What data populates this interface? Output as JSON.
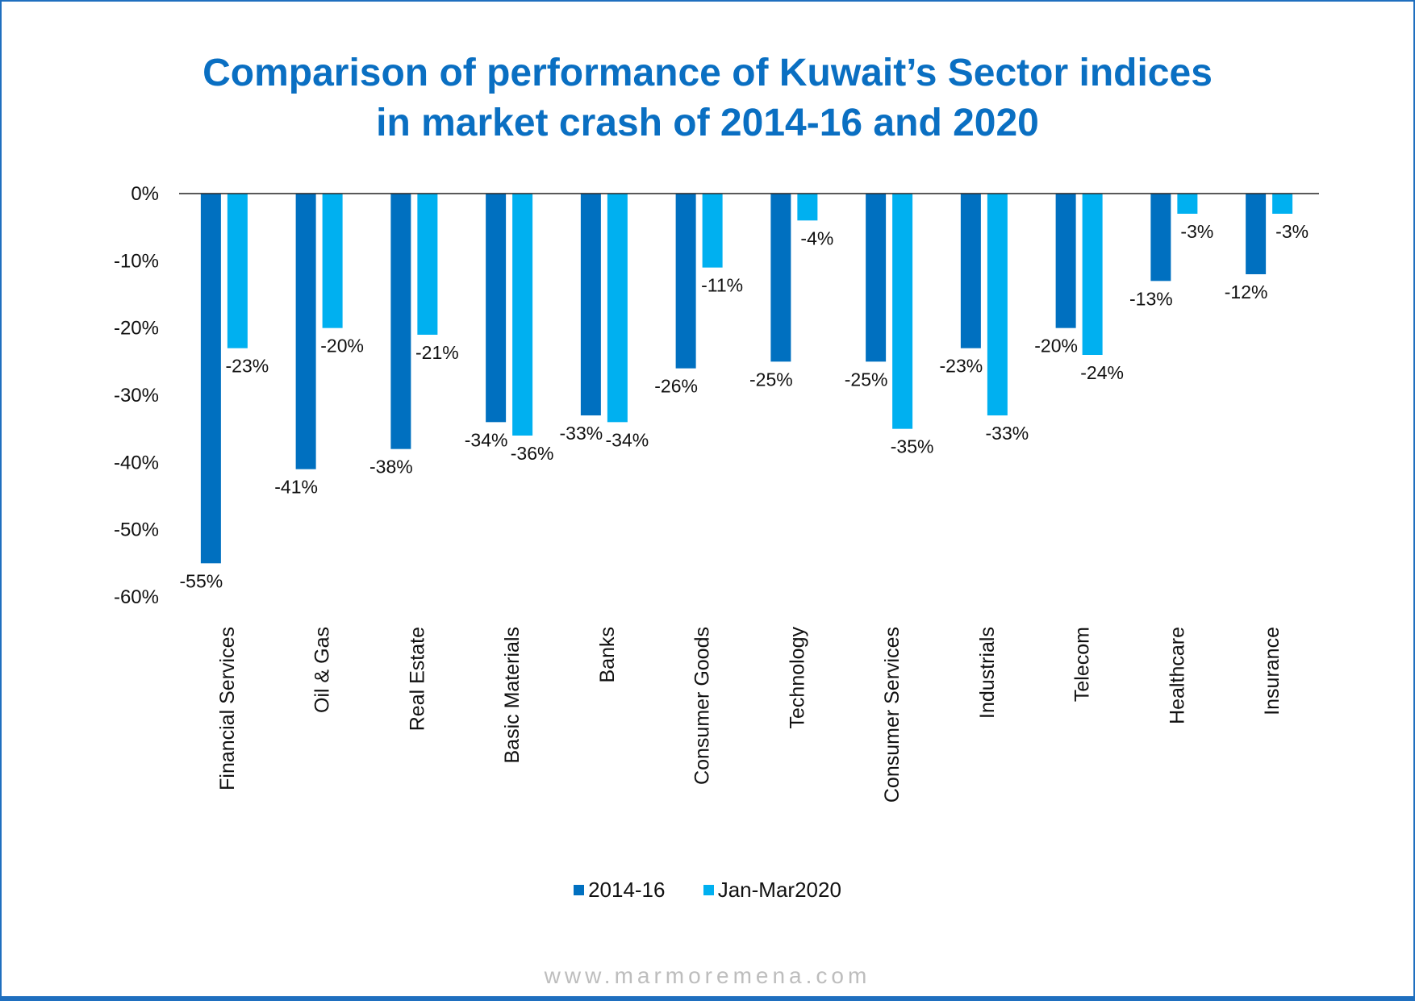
{
  "chart_data": {
    "type": "bar",
    "title": [
      "Comparison of performance of Kuwait’s Sector indices",
      "in market crash of 2014-16 and 2020"
    ],
    "categories": [
      "Financial Services",
      "Oil & Gas",
      "Real Estate",
      "Basic Materials",
      "Banks",
      "Consumer Goods",
      "Technology",
      "Consumer Services",
      "Industrials",
      "Telecom",
      "Healthcare",
      "Insurance"
    ],
    "series": [
      {
        "name": "2014-16",
        "color": "#0070c0",
        "values": [
          -55,
          -41,
          -38,
          -34,
          -33,
          -26,
          -25,
          -25,
          -23,
          -20,
          -13,
          -12
        ],
        "labels": [
          "-55%",
          "-41%",
          "-38%",
          "-34%",
          "-33%",
          "-26%",
          "-25%",
          "-25%",
          "-23%",
          "-20%",
          "-13%",
          "-12%"
        ]
      },
      {
        "name": "Jan-Mar2020",
        "color": "#00b0f0",
        "values": [
          -23,
          -20,
          -21,
          -36,
          -34,
          -11,
          -4,
          -35,
          -33,
          -24,
          -3,
          -3
        ],
        "labels": [
          "-23%",
          "-20%",
          "-21%",
          "-36%",
          "-34%",
          "-11%",
          "-4%",
          "-35%",
          "-33%",
          "-24%",
          "-3%",
          "-3%"
        ]
      }
    ],
    "yticks": [
      "0%",
      "-10%",
      "-20%",
      "-30%",
      "-40%",
      "-50%",
      "-60%"
    ],
    "ylim": [
      -60,
      0
    ],
    "grid": false,
    "legend_position": "bottom"
  },
  "footer": "www.marmoremena.com"
}
